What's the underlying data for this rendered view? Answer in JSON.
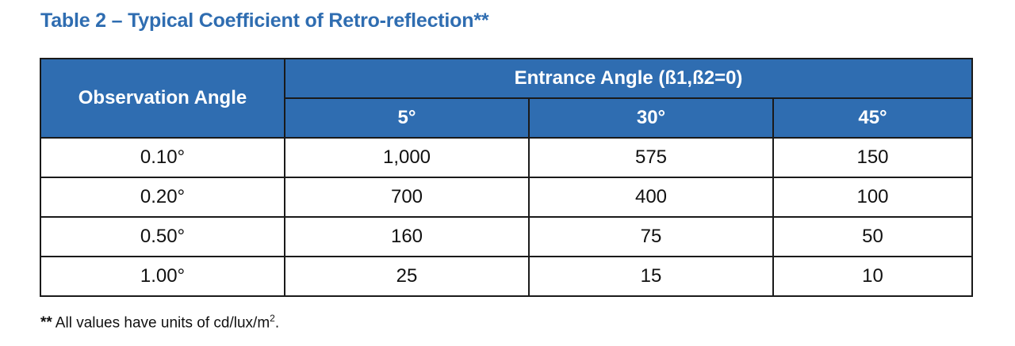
{
  "title": "Table 2 – Typical Coefficient of Retro-reflection**",
  "table": {
    "row_header": "Observation Angle",
    "group_header": "Entrance Angle (ß1,ß2=0)",
    "columns": [
      "5°",
      "30°",
      "45°"
    ],
    "rows": [
      {
        "angle": "0.10°",
        "values": [
          "1,000",
          "575",
          "150"
        ]
      },
      {
        "angle": "0.20°",
        "values": [
          "700",
          "400",
          "100"
        ]
      },
      {
        "angle": "0.50°",
        "values": [
          "160",
          "75",
          "50"
        ]
      },
      {
        "angle": "1.00°",
        "values": [
          "25",
          "15",
          "10"
        ]
      }
    ]
  },
  "footnote": {
    "marker": "**",
    "text": "All values have units of cd/lux/m",
    "superscript": "2",
    "end": "."
  }
}
